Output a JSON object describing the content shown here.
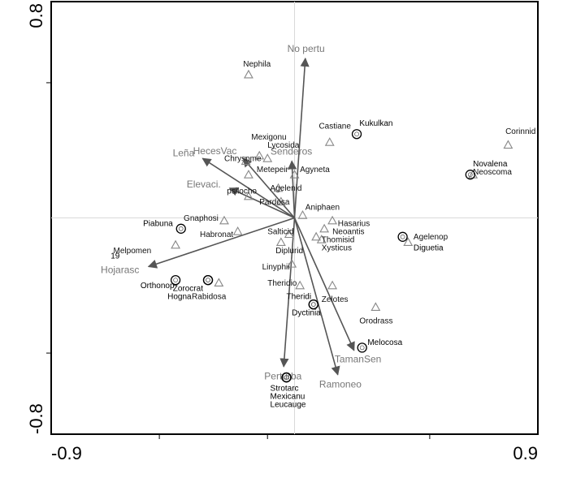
{
  "chart_data": {
    "type": "scatter",
    "title": "",
    "xlabel": "",
    "ylabel": "",
    "xlim": [
      -0.9,
      0.9
    ],
    "ylim": [
      -0.8,
      0.8
    ],
    "tick_labels": {
      "x_min": "-0.9",
      "x_max": "0.9",
      "y_min": "-0.8",
      "y_max": "0.8"
    },
    "minor_ticks_x": [
      -0.5,
      -0.1,
      0.5
    ],
    "minor_ticks_y": [
      -0.5,
      0.5
    ],
    "origin_lines": true,
    "grid": false,
    "legend": false,
    "colors": {
      "arrow": "#555555",
      "triangle": "#888888",
      "circle": "#000000",
      "var_label": "#777777"
    },
    "environment_vectors": [
      {
        "label": "No pertu",
        "x": 0.04,
        "y": 0.59
      },
      {
        "label": "HecesVac",
        "x": -0.19,
        "y": 0.22
      },
      {
        "label": "Senderos",
        "x": -0.01,
        "y": 0.21
      },
      {
        "label": "Leña",
        "x": -0.34,
        "y": 0.22
      },
      {
        "label": "Elevaci.",
        "x": -0.24,
        "y": 0.11
      },
      {
        "label": "Hojarasc",
        "x": -0.54,
        "y": -0.18
      },
      {
        "label": "Perturba",
        "x": -0.04,
        "y": -0.55
      },
      {
        "label": "Ramoneo",
        "x": 0.16,
        "y": -0.58
      },
      {
        "label": "TamanSen",
        "x": 0.22,
        "y": -0.49
      }
    ],
    "species": [
      {
        "label": "Nephila",
        "x": -0.17,
        "y": 0.53,
        "lx": -0.19,
        "ly": 0.56
      },
      {
        "label": "Mexigonu",
        "x": -0.13,
        "y": 0.23,
        "lx": -0.16,
        "ly": 0.29
      },
      {
        "label": "Lycosida",
        "x": -0.1,
        "y": 0.22,
        "lx": -0.1,
        "ly": 0.26
      },
      {
        "label": "Chrysome",
        "x": -0.18,
        "y": 0.21,
        "lx": -0.26,
        "ly": 0.21
      },
      {
        "label": "Metepeir",
        "x": -0.17,
        "y": 0.16,
        "lx": -0.14,
        "ly": 0.17
      },
      {
        "label": "Agyneta",
        "x": 0.0,
        "y": 0.16,
        "lx": 0.02,
        "ly": 0.17
      },
      {
        "label": "Agelenid",
        "x": -0.06,
        "y": 0.11,
        "lx": -0.09,
        "ly": 0.1
      },
      {
        "label": "psilocho",
        "x": -0.17,
        "y": 0.08,
        "lx": -0.25,
        "ly": 0.09
      },
      {
        "label": "Pardosa",
        "x": -0.05,
        "y": 0.06,
        "lx": -0.13,
        "ly": 0.05
      },
      {
        "label": "Aniphaen",
        "x": 0.03,
        "y": 0.01,
        "lx": 0.04,
        "ly": 0.03
      },
      {
        "label": "Gnaphosi",
        "x": -0.26,
        "y": -0.01,
        "lx": -0.41,
        "ly": -0.01
      },
      {
        "label": "Habronat",
        "x": -0.21,
        "y": -0.05,
        "lx": -0.35,
        "ly": -0.07
      },
      {
        "label": "Hasarius",
        "x": 0.14,
        "y": -0.01,
        "lx": 0.16,
        "ly": -0.03
      },
      {
        "label": "Neoantis",
        "x": 0.11,
        "y": -0.04,
        "lx": 0.14,
        "ly": -0.06
      },
      {
        "label": "Salticid",
        "x": -0.02,
        "y": -0.06,
        "lx": -0.1,
        "ly": -0.06
      },
      {
        "label": "Thomisid",
        "x": 0.1,
        "y": -0.08,
        "lx": 0.1,
        "ly": -0.09
      },
      {
        "label": "Xysticus",
        "x": 0.08,
        "y": -0.07,
        "lx": 0.1,
        "ly": -0.12
      },
      {
        "label": "Melpomen",
        "x": -0.44,
        "y": -0.1,
        "lx": -0.67,
        "ly": -0.13
      },
      {
        "label": "Diplurid",
        "x": -0.05,
        "y": -0.09,
        "lx": -0.07,
        "ly": -0.13
      },
      {
        "label": "Linyphii",
        "x": -0.01,
        "y": -0.17,
        "lx": -0.12,
        "ly": -0.19
      },
      {
        "label": "Theridio",
        "x": 0.02,
        "y": -0.25,
        "lx": -0.1,
        "ly": -0.25
      },
      {
        "label": "Zelotes",
        "x": 0.14,
        "y": -0.25,
        "lx": 0.1,
        "ly": -0.31
      },
      {
        "label": "Rabidosa",
        "x": -0.28,
        "y": -0.24,
        "lx": -0.38,
        "ly": -0.3
      },
      {
        "label": "Castiane",
        "x": 0.13,
        "y": 0.28,
        "lx": 0.09,
        "ly": 0.33
      },
      {
        "label": "Orodrass",
        "x": 0.3,
        "y": -0.33,
        "lx": 0.24,
        "ly": -0.39
      },
      {
        "label": "Agelenop",
        "x": 0.42,
        "y": -0.09,
        "lx": 0.44,
        "ly": -0.08
      },
      {
        "label": "Corinnid",
        "x": 0.79,
        "y": 0.27,
        "lx": 0.78,
        "ly": 0.31
      },
      {
        "label": "Neoscoma",
        "x": 0.66,
        "y": 0.16,
        "lx": 0.66,
        "ly": 0.16
      }
    ],
    "sample_sites": [
      {
        "label": "Kukulkan",
        "x": 0.23,
        "y": 0.31,
        "lx": 0.24,
        "ly": 0.34
      },
      {
        "label": "Novalena",
        "x": 0.65,
        "y": 0.16,
        "lx": 0.66,
        "ly": 0.19
      },
      {
        "label": "Piabuna",
        "x": -0.42,
        "y": -0.04,
        "lx": -0.56,
        "ly": -0.03
      },
      {
        "label": "Orthonop",
        "x": -0.44,
        "y": -0.23,
        "lx": -0.57,
        "ly": -0.26
      },
      {
        "label": "Zorocrat",
        "x": -0.32,
        "y": -0.23,
        "lx": -0.45,
        "ly": -0.27
      },
      {
        "label": "Hogna",
        "x": -0.32,
        "y": -0.23,
        "lx": -0.47,
        "ly": -0.3
      },
      {
        "label": "Theridi",
        "x": 0.07,
        "y": -0.32,
        "lx": -0.03,
        "ly": -0.3
      },
      {
        "label": "Dyctinia",
        "x": 0.07,
        "y": -0.32,
        "lx": -0.01,
        "ly": -0.36
      },
      {
        "label": "Diguetia",
        "x": 0.4,
        "y": -0.07,
        "lx": 0.44,
        "ly": -0.12
      },
      {
        "label": "Melocosa",
        "x": 0.25,
        "y": -0.48,
        "lx": 0.27,
        "ly": -0.47
      },
      {
        "label": "Strotarc",
        "x": -0.03,
        "y": -0.59,
        "lx": -0.09,
        "ly": -0.64
      },
      {
        "label": "Mexicanu",
        "x": -0.03,
        "y": -0.59,
        "lx": -0.09,
        "ly": -0.67
      },
      {
        "label": "Leucauge",
        "x": -0.03,
        "y": -0.59,
        "lx": -0.09,
        "ly": -0.7
      }
    ],
    "extra_labels": [
      {
        "label": "19",
        "lx": -0.68,
        "ly": -0.15
      }
    ]
  }
}
